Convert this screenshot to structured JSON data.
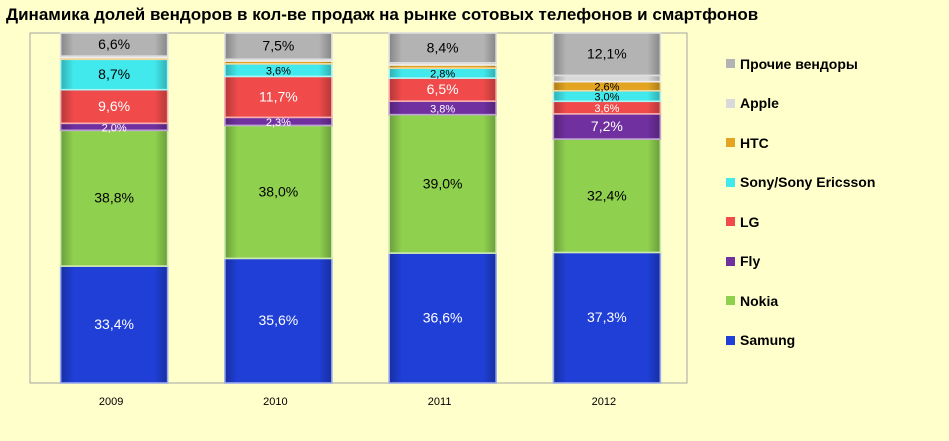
{
  "chart_data": {
    "type": "bar",
    "stacked": true,
    "title": "Динамика долей вендоров в кол-ве продаж на рынке сотовых телефонов и смартфонов",
    "categories": [
      "2009",
      "2010",
      "2011",
      "2012"
    ],
    "ylim": [
      0,
      100
    ],
    "legend_position": "right",
    "series": [
      {
        "name": "Samung",
        "color": "#1f3fd6",
        "values": [
          33.4,
          35.6,
          36.6,
          37.3
        ],
        "labels": [
          "33,4%",
          "35,6%",
          "36,6%",
          "37,3%"
        ]
      },
      {
        "name": "Nokia",
        "color": "#8fd14f",
        "values": [
          38.8,
          38.0,
          39.0,
          32.4
        ],
        "labels": [
          "38,8%",
          "38,0%",
          "39,0%",
          "32,4%"
        ]
      },
      {
        "name": "Fly",
        "color": "#7030a0",
        "values": [
          2.0,
          2.3,
          3.8,
          7.2
        ],
        "labels": [
          "2,0%",
          "2,3%",
          "3,8%",
          "7,2%"
        ]
      },
      {
        "name": "LG",
        "color": "#f04a4a",
        "values": [
          9.6,
          11.7,
          6.5,
          3.6
        ],
        "labels": [
          "9,6%",
          "11,7%",
          "6,5%",
          "3,6%"
        ]
      },
      {
        "name": "Sony/Sony Ericsson",
        "color": "#41e8ec",
        "values": [
          8.7,
          3.6,
          2.8,
          3.0
        ],
        "labels": [
          "8,7%",
          "3,6%",
          "2,8%",
          "3,0%"
        ]
      },
      {
        "name": "HTC",
        "color": "#e3a521",
        "values": [
          0.5,
          0.8,
          0.9,
          2.6
        ],
        "labels": [
          "",
          "",
          "",
          "2,6%"
        ]
      },
      {
        "name": "Apple",
        "color": "#d9d9d9",
        "values": [
          0.4,
          0.5,
          0.6,
          1.8
        ],
        "labels": [
          "",
          "",
          "",
          ""
        ]
      },
      {
        "name": "Прочие вендоры",
        "color": "#b3b3b3",
        "values": [
          6.6,
          7.5,
          8.4,
          12.1
        ],
        "labels": [
          "6,6%",
          "7,5%",
          "8,4%",
          "12,1%"
        ]
      }
    ],
    "legend": [
      "Прочие вендоры",
      "Apple",
      "HTC",
      "Sony/Sony Ericsson",
      "LG",
      "Fly",
      "Nokia",
      "Samung"
    ]
  }
}
